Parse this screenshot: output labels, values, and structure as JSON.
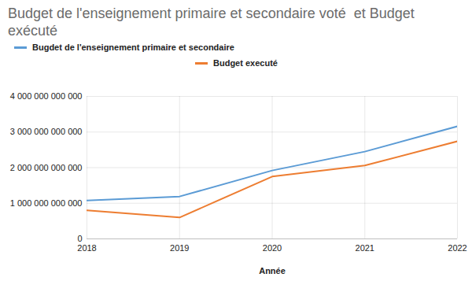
{
  "chart_data": {
    "type": "line",
    "title": "Budget de l'enseignement primaire et secondaire voté  et Budget exécuté",
    "x_label": "Année",
    "x": [
      2018,
      2019,
      2020,
      2021,
      2022
    ],
    "series": [
      {
        "name": "Bugdet de l'enseignement primaire et secondaire",
        "color": "#5b9bd5",
        "values": [
          1080000000000,
          1190000000000,
          1920000000000,
          2450000000000,
          3160000000000
        ]
      },
      {
        "name": "Budget executé",
        "color": "#ed7d31",
        "values": [
          800000000000,
          600000000000,
          1750000000000,
          2060000000000,
          2740000000000
        ]
      }
    ],
    "xlim": [
      2018,
      2022
    ],
    "xticks": [
      2018,
      2019,
      2020,
      2021,
      2022
    ],
    "ylim": [
      0,
      4000000000000
    ],
    "yticks": [
      0,
      {
        "value": 1000000000000,
        "label": "1 000 000 000 000"
      },
      {
        "value": 2000000000000,
        "label": "2 000 000 000 000"
      },
      {
        "value": 3000000000000,
        "label": "3 000 000 000 000"
      },
      {
        "value": 4000000000000,
        "label": "4 000 000 000 000"
      }
    ],
    "grid": true,
    "legend": "top"
  }
}
